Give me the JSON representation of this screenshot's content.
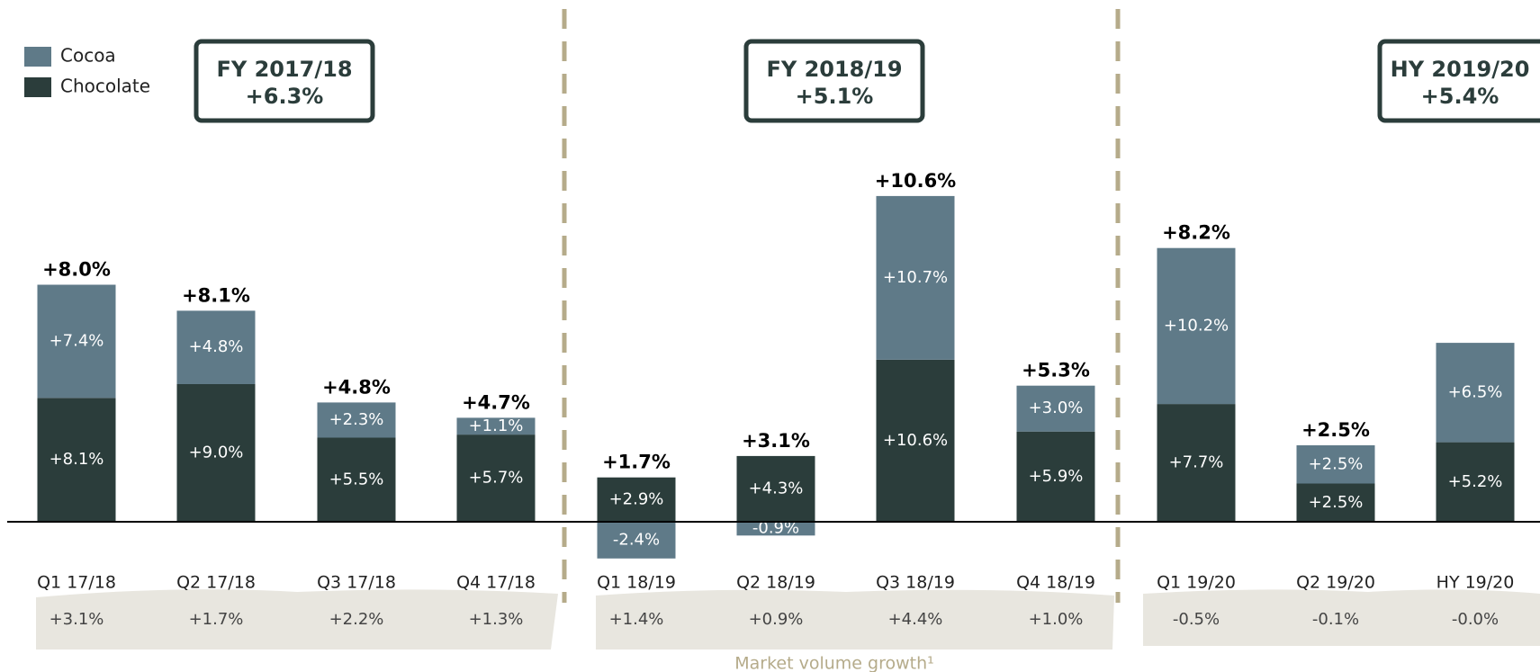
{
  "chart_data": {
    "type": "bar",
    "stacked": true,
    "categories": [
      "Q1 17/18",
      "Q2 17/18",
      "Q3 17/18",
      "Q4 17/18",
      "Q1 18/19",
      "Q2 18/19",
      "Q3 18/19",
      "Q4 18/19",
      "Q1 19/20",
      "Q2 19/20",
      "HY 19/20"
    ],
    "series": [
      {
        "name": "Chocolate",
        "color": "#2b3d3b",
        "values": [
          8.1,
          9.0,
          5.5,
          5.7,
          2.9,
          4.3,
          10.6,
          5.9,
          7.7,
          2.5,
          5.2
        ],
        "value_labels": [
          "+8.1%",
          "+9.0%",
          "+5.5%",
          "+5.7%",
          "+2.9%",
          "+4.3%",
          "+10.6%",
          "+5.9%",
          "+7.7%",
          "+2.5%",
          "+5.2%"
        ]
      },
      {
        "name": "Cocoa",
        "color": "#5f7a88",
        "values": [
          7.4,
          4.8,
          2.3,
          1.1,
          -2.4,
          -0.9,
          10.7,
          3.0,
          10.2,
          2.5,
          6.5
        ],
        "value_labels": [
          "+7.4%",
          "+4.8%",
          "+2.3%",
          "+1.1%",
          "-2.4%",
          "-0.9%",
          "+10.7%",
          "+3.0%",
          "+10.2%",
          "+2.5%",
          "+6.5%"
        ]
      }
    ],
    "totals": {
      "values": [
        8.0,
        8.1,
        4.8,
        4.7,
        1.7,
        3.1,
        10.6,
        5.3,
        8.2,
        2.5,
        null
      ],
      "value_labels": [
        "+8.0%",
        "+8.1%",
        "+4.8%",
        "+4.7%",
        "+1.7%",
        "+3.1%",
        "+10.6%",
        "+5.3%",
        "+8.2%",
        "+2.5%",
        null
      ]
    },
    "periods": [
      {
        "name": "FY 2017/18",
        "growth": "+6.3%"
      },
      {
        "name": "FY 2018/19",
        "growth": "+5.1%"
      },
      {
        "name": "HY 2019/20",
        "growth": "+5.4%"
      }
    ],
    "market": {
      "title": "Market volume growth¹",
      "values": [
        3.1,
        1.7,
        2.2,
        1.3,
        1.4,
        0.9,
        4.4,
        1.0,
        -0.5,
        -0.1,
        -0.0
      ],
      "value_labels": [
        "+3.1%",
        "+1.7%",
        "+2.2%",
        "+1.3%",
        "+1.4%",
        "+0.9%",
        "+4.4%",
        "+1.0%",
        "-0.5%",
        "-0.1%",
        "-0.0%"
      ]
    },
    "ylim": [
      -3,
      22
    ]
  }
}
